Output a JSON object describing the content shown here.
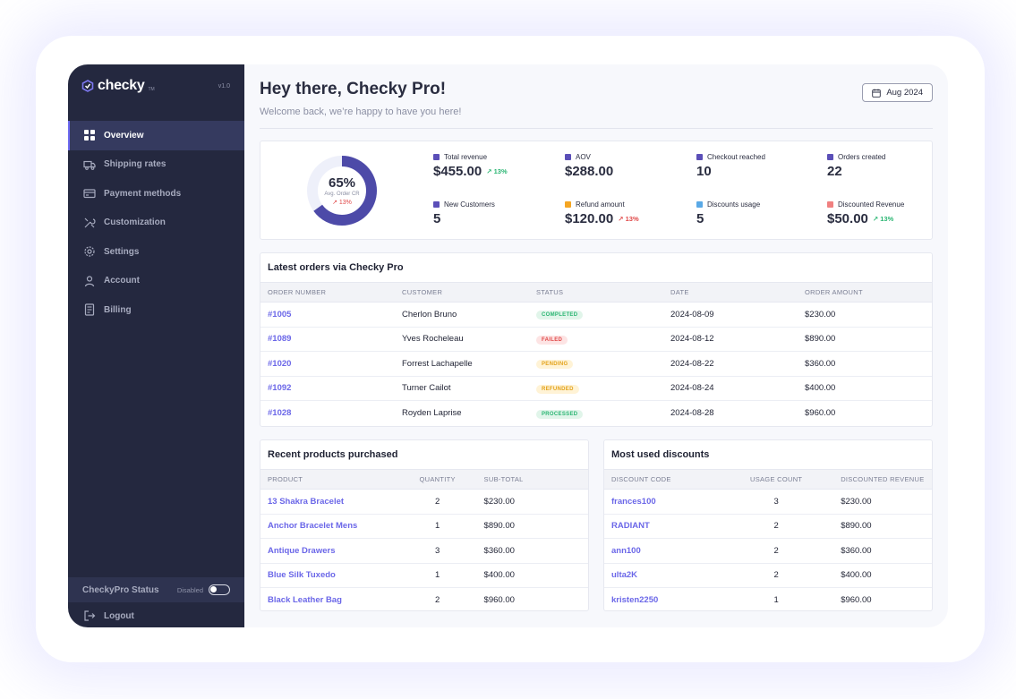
{
  "sidebar": {
    "brand": "checky",
    "brand_tm": "TM",
    "version": "v1.0",
    "items": [
      {
        "label": "Overview",
        "icon": "grid-icon"
      },
      {
        "label": "Shipping rates",
        "icon": "truck-icon"
      },
      {
        "label": "Payment methods",
        "icon": "card-icon"
      },
      {
        "label": "Customization",
        "icon": "tools-icon"
      },
      {
        "label": "Settings",
        "icon": "gear-icon"
      },
      {
        "label": "Account",
        "icon": "user-icon"
      },
      {
        "label": "Billing",
        "icon": "receipt-icon"
      }
    ],
    "status_label": "CheckyPro Status",
    "status_value": "Disabled",
    "logout": "Logout"
  },
  "header": {
    "title": "Hey there, Checky Pro!",
    "subtitle": "Welcome back, we’re happy to have you here!",
    "date": "Aug 2024"
  },
  "stats": {
    "donut": {
      "percent": "65%",
      "percent_value": 65,
      "label": "Avg. Order CR",
      "change": "↗ 13%"
    },
    "metrics": [
      {
        "label": "Total revenue",
        "value": "$455.00",
        "change": "↗ 13%",
        "dir": "up",
        "color": "#5b4fb8"
      },
      {
        "label": "AOV",
        "value": "$288.00",
        "change": "",
        "dir": "",
        "color": "#5b4fb8"
      },
      {
        "label": "Checkout reached",
        "value": "10",
        "change": "",
        "dir": "",
        "color": "#5b4fb8"
      },
      {
        "label": "Orders created",
        "value": "22",
        "change": "",
        "dir": "",
        "color": "#5b4fb8"
      },
      {
        "label": "New Customers",
        "value": "5",
        "change": "",
        "dir": "",
        "color": "#5b4fb8"
      },
      {
        "label": "Refund amount",
        "value": "$120.00",
        "change": "↗ 13%",
        "dir": "down",
        "color": "#f5a623"
      },
      {
        "label": "Discounts usage",
        "value": "5",
        "change": "",
        "dir": "",
        "color": "#5aa9e6"
      },
      {
        "label": "Discounted Revenue",
        "value": "$50.00",
        "change": "↗ 13%",
        "dir": "up",
        "color": "#f08080"
      }
    ]
  },
  "orders": {
    "title": "Latest orders via Checky Pro",
    "columns": [
      "ORDER NUMBER",
      "CUSTOMER",
      "STATUS",
      "DATE",
      "ORDER AMOUNT"
    ],
    "rows": [
      {
        "number": "#1005",
        "customer": "Cherlon Bruno",
        "status": "COMPLETED",
        "status_class": "b-completed",
        "date": "2024-08-09",
        "amount": "$230.00"
      },
      {
        "number": "#1089",
        "customer": "Yves Rocheleau",
        "status": "FAILED",
        "status_class": "b-failed",
        "date": "2024-08-12",
        "amount": "$890.00"
      },
      {
        "number": "#1020",
        "customer": "Forrest Lachapelle",
        "status": "PENDING",
        "status_class": "b-pending",
        "date": "2024-08-22",
        "amount": "$360.00"
      },
      {
        "number": "#1092",
        "customer": "Turner Cailot",
        "status": "REFUNDED",
        "status_class": "b-refunded",
        "date": "2024-08-24",
        "amount": "$400.00"
      },
      {
        "number": "#1028",
        "customer": "Royden Laprise",
        "status": "PROCESSED",
        "status_class": "b-processed",
        "date": "2024-08-28",
        "amount": "$960.00"
      }
    ]
  },
  "products": {
    "title": "Recent products purchased",
    "columns": [
      "PRODUCT",
      "QUANTITY",
      "SUB-TOTAL"
    ],
    "rows": [
      {
        "name": "13 Shakra Bracelet",
        "qty": "2",
        "subtotal": "$230.00"
      },
      {
        "name": "Anchor Bracelet Mens",
        "qty": "1",
        "subtotal": "$890.00"
      },
      {
        "name": "Antique Drawers",
        "qty": "3",
        "subtotal": "$360.00"
      },
      {
        "name": "Blue Silk Tuxedo",
        "qty": "1",
        "subtotal": "$400.00"
      },
      {
        "name": "Black Leather Bag",
        "qty": "2",
        "subtotal": "$960.00"
      }
    ]
  },
  "discounts": {
    "title": "Most used discounts",
    "columns": [
      "DISCOUNT CODE",
      "USAGE COUNT",
      "DISCOUNTED REVENUE"
    ],
    "rows": [
      {
        "code": "frances100",
        "count": "3",
        "revenue": "$230.00"
      },
      {
        "code": "RADIANT",
        "count": "2",
        "revenue": "$890.00"
      },
      {
        "code": "ann100",
        "count": "2",
        "revenue": "$360.00"
      },
      {
        "code": "ulta2K",
        "count": "2",
        "revenue": "$400.00"
      },
      {
        "code": "kristen2250",
        "count": "1",
        "revenue": "$960.00"
      }
    ]
  }
}
